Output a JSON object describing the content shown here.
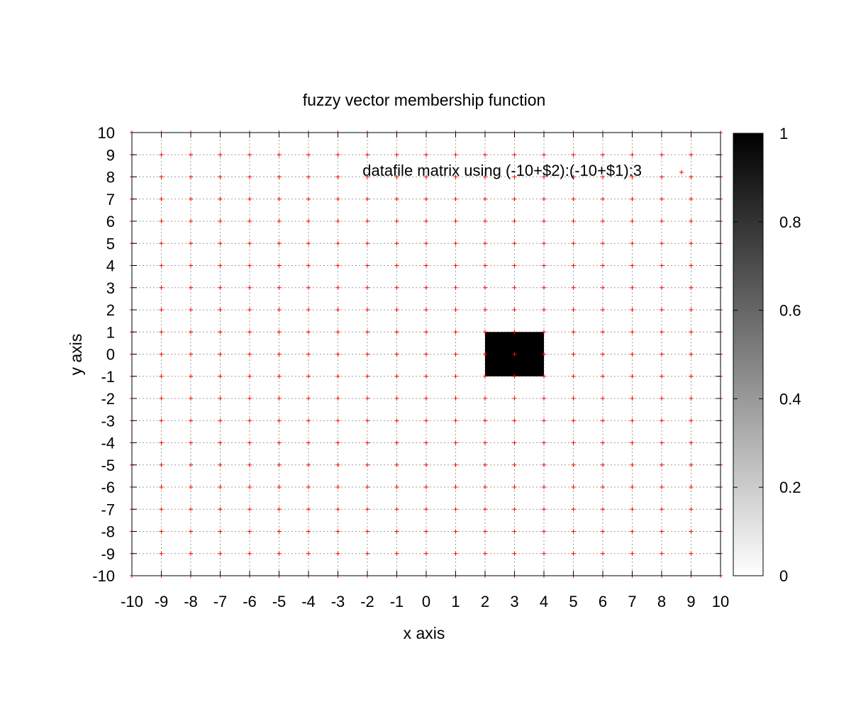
{
  "chart_data": {
    "type": "heatmap",
    "title": "fuzzy vector membership function",
    "xlabel": "x axis",
    "ylabel": "y axis",
    "xlim": [
      -10,
      10
    ],
    "ylim": [
      -10,
      10
    ],
    "x_ticks": [
      "-10",
      "-9",
      "-8",
      "-7",
      "-6",
      "-5",
      "-4",
      "-3",
      "-2",
      "-1",
      "0",
      "1",
      "2",
      "3",
      "4",
      "5",
      "6",
      "7",
      "8",
      "9",
      "10"
    ],
    "y_ticks": [
      "-10",
      "-9",
      "-8",
      "-7",
      "-6",
      "-5",
      "-4",
      "-3",
      "-2",
      "-1",
      "0",
      "1",
      "2",
      "3",
      "4",
      "5",
      "6",
      "7",
      "8",
      "9",
      "10"
    ],
    "grid": true,
    "legend": {
      "label": "datafile matrix using (-10+$2):(-10+$1):3",
      "placement": "top-right",
      "marker": "+",
      "color": "#ff0000"
    },
    "point_marker": "+",
    "point_color": "#ff0000",
    "point_grid": {
      "x_from": -10,
      "x_to": 10,
      "y_from": -10,
      "y_to": 10,
      "step": 1
    },
    "cells": [
      {
        "x": [
          2,
          4
        ],
        "y": [
          -1,
          1
        ],
        "value": 1
      }
    ],
    "colorbar": {
      "range": [
        0,
        1
      ],
      "ticks": [
        "0",
        "0.2",
        "0.4",
        "0.6",
        "0.8",
        "1"
      ],
      "colormap": "gray",
      "low_color": "#ffffff",
      "high_color": "#000000"
    }
  }
}
